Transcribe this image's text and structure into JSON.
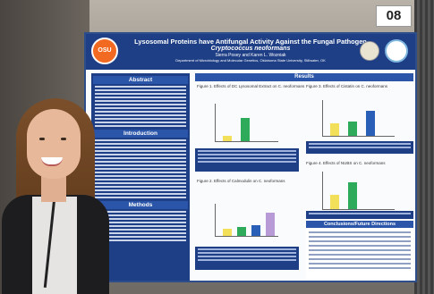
{
  "number_card": "08",
  "poster": {
    "title_line1": "Lysosomal Proteins have Antifungal Activity Against the Fungal Pathogen",
    "title_line2": "Cryptococcus neoformans",
    "authors": "Sierra Posey and Karen L. Wozniak",
    "department": "Department of Microbiology and Molecular Genetics, Oklahoma State University, Stillwater, OK",
    "logo_text": "OSU",
    "sections_left": [
      "Abstract",
      "Introduction",
      "Methods"
    ],
    "results_header": "Results",
    "figures": [
      "Figure 1. Effects of DC Lysosomal Extract on C. neoformans",
      "Figure 2. Effects of Calmodulin on C. neoformans",
      "Figure 3. Effects of Cistatin on C. neoformans",
      "Figure 4. Effects of NUBS on C. neoformans"
    ],
    "conclusions_header": "Conclusions/Future Directions"
  },
  "colors": {
    "poster_blue": "#1e3f86",
    "bar_yellow": "#f3e05a",
    "bar_green": "#2daa5a",
    "bar_blue": "#2a5fb8",
    "bar_purple": "#b89ad6"
  }
}
